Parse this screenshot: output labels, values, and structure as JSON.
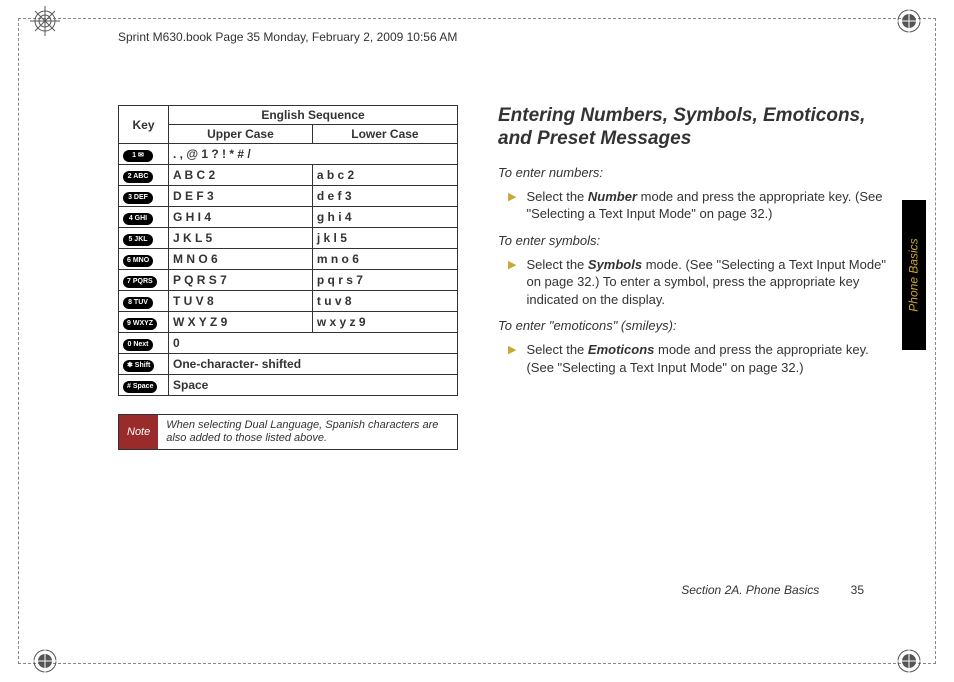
{
  "header": "Sprint M630.book  Page 35  Monday, February 2, 2009  10:56 AM",
  "accent_color": "#c9a935",
  "note_bg": "#9a2b2b",
  "side_tab_color": "#c9a935",
  "bullet_color": "#c9a935",
  "table": {
    "header_key": "Key",
    "header_seq": "English Sequence",
    "header_upper": "Upper Case",
    "header_lower": "Lower Case",
    "rows": [
      {
        "key": "1 ✉",
        "upper": ". , @ 1 ? ! * # /",
        "span": true
      },
      {
        "key": "2 ABC",
        "upper": "A B C 2",
        "lower": "a b c 2"
      },
      {
        "key": "3 DEF",
        "upper": "D E F 3",
        "lower": "d e f 3"
      },
      {
        "key": "4 GHI",
        "upper": "G H I 4",
        "lower": "g h i 4"
      },
      {
        "key": "5 JKL",
        "upper": "J K L 5",
        "lower": "j k l 5"
      },
      {
        "key": "6 MNO",
        "upper": "M N O 6",
        "lower": "m n o 6"
      },
      {
        "key": "7 PQRS",
        "upper": "P Q R S 7",
        "lower": "p q r s 7"
      },
      {
        "key": "8 TUV",
        "upper": "T U V 8",
        "lower": "t u v 8"
      },
      {
        "key": "9 WXYZ",
        "upper": "W X Y Z 9",
        "lower": "w x y z 9"
      },
      {
        "key": "0 Next",
        "upper": "0",
        "span": true
      },
      {
        "key": "✱ Shift",
        "upper": "One-character- shifted",
        "span": true
      },
      {
        "key": "# Space",
        "upper": "Space",
        "span": true
      }
    ]
  },
  "note": {
    "label": "Note",
    "text": "When selecting Dual Language, Spanish characters are also added to those listed above."
  },
  "right": {
    "title": "Entering Numbers, Symbols, Emoticons, and Preset Messages",
    "h_numbers": "To enter numbers:",
    "b_numbers_pre": "Select the ",
    "b_numbers_bold": "Number",
    "b_numbers_post": " mode and press the appropriate key. (See \"Selecting a Text Input Mode\" on page 32.)",
    "h_symbols": "To enter symbols:",
    "b_symbols_pre": "Select the ",
    "b_symbols_bold": "Symbols",
    "b_symbols_post": " mode. (See \"Selecting a Text Input Mode\" on page 32.) To enter a symbol, press the appropriate key indicated on the display.",
    "h_emoticons": "To enter \"emoticons\" (smileys):",
    "b_emoticons_pre": "Select the ",
    "b_emoticons_bold": "Emoticons",
    "b_emoticons_post": " mode and press the appropriate key. (See \"Selecting a Text Input Mode\" on page 32.)"
  },
  "side_tab": "Phone Basics",
  "footer_section": "Section 2A. Phone Basics",
  "footer_page": "35"
}
